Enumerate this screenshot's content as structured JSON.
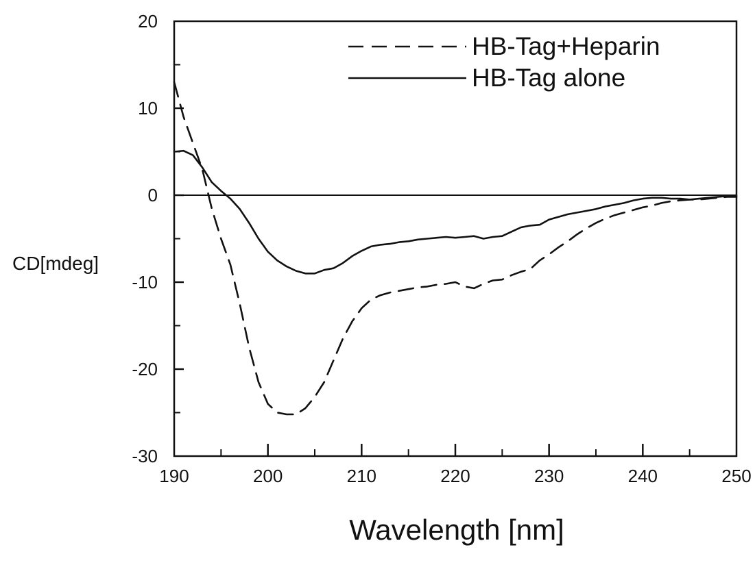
{
  "chart_data": {
    "type": "line",
    "title": "",
    "xlabel": "Wavelength [nm]",
    "ylabel": "CD[mdeg]",
    "xlim": [
      190,
      250
    ],
    "ylim": [
      -30,
      20
    ],
    "xticks": [
      190,
      200,
      210,
      220,
      230,
      240,
      250
    ],
    "yticks": [
      -30,
      -20,
      -10,
      0,
      10,
      20
    ],
    "x_tick_labels": [
      "190",
      "200",
      "210",
      "220",
      "230",
      "240",
      "250"
    ],
    "y_tick_labels": [
      "-30",
      "-20",
      "-10",
      "0",
      "10",
      "20"
    ],
    "legend_position": "top-right",
    "grid": false,
    "zero_line": true,
    "series": [
      {
        "name": "HB-Tag+Heparin",
        "style": "dashed",
        "color": "#111111",
        "points": [
          [
            190,
            13
          ],
          [
            191,
            9
          ],
          [
            192,
            6
          ],
          [
            193,
            3
          ],
          [
            194,
            -1.5
          ],
          [
            195,
            -5
          ],
          [
            196,
            -8
          ],
          [
            197,
            -12.5
          ],
          [
            198,
            -17.5
          ],
          [
            199,
            -21.5
          ],
          [
            200,
            -24
          ],
          [
            201,
            -25
          ],
          [
            202,
            -25.2
          ],
          [
            203,
            -25.2
          ],
          [
            204,
            -24.5
          ],
          [
            205,
            -23.2
          ],
          [
            206,
            -21.5
          ],
          [
            207,
            -19
          ],
          [
            208,
            -16.5
          ],
          [
            209,
            -14.5
          ],
          [
            210,
            -13
          ],
          [
            211,
            -12
          ],
          [
            212,
            -11.5
          ],
          [
            213,
            -11.2
          ],
          [
            214,
            -11
          ],
          [
            215,
            -10.8
          ],
          [
            216,
            -10.6
          ],
          [
            217,
            -10.5
          ],
          [
            218,
            -10.3
          ],
          [
            219,
            -10.2
          ],
          [
            220,
            -10
          ],
          [
            221,
            -10.5
          ],
          [
            222,
            -10.7
          ],
          [
            223,
            -10.2
          ],
          [
            224,
            -9.8
          ],
          [
            225,
            -9.7
          ],
          [
            226,
            -9.2
          ],
          [
            227,
            -8.8
          ],
          [
            228,
            -8.5
          ],
          [
            229,
            -7.5
          ],
          [
            230,
            -6.8
          ],
          [
            231,
            -6
          ],
          [
            232,
            -5.3
          ],
          [
            233,
            -4.5
          ],
          [
            234,
            -3.8
          ],
          [
            235,
            -3.2
          ],
          [
            236,
            -2.7
          ],
          [
            237,
            -2.3
          ],
          [
            238,
            -2
          ],
          [
            239,
            -1.7
          ],
          [
            240,
            -1.4
          ],
          [
            241,
            -1.2
          ],
          [
            242,
            -0.9
          ],
          [
            243,
            -0.7
          ],
          [
            244,
            -0.6
          ],
          [
            245,
            -0.5
          ],
          [
            246,
            -0.5
          ],
          [
            247,
            -0.4
          ],
          [
            248,
            -0.3
          ],
          [
            249,
            -0.2
          ],
          [
            250,
            -0.2
          ]
        ]
      },
      {
        "name": "HB-Tag alone",
        "style": "solid",
        "color": "#111111",
        "points": [
          [
            190,
            5
          ],
          [
            191,
            5.1
          ],
          [
            192,
            4.6
          ],
          [
            193,
            3.2
          ],
          [
            194,
            1.5
          ],
          [
            195,
            0.5
          ],
          [
            196,
            -0.4
          ],
          [
            197,
            -1.6
          ],
          [
            198,
            -3.2
          ],
          [
            199,
            -5
          ],
          [
            200,
            -6.5
          ],
          [
            201,
            -7.5
          ],
          [
            202,
            -8.2
          ],
          [
            203,
            -8.7
          ],
          [
            204,
            -9
          ],
          [
            205,
            -9
          ],
          [
            206,
            -8.6
          ],
          [
            207,
            -8.4
          ],
          [
            208,
            -7.8
          ],
          [
            209,
            -7
          ],
          [
            210,
            -6.4
          ],
          [
            211,
            -5.9
          ],
          [
            212,
            -5.7
          ],
          [
            213,
            -5.6
          ],
          [
            214,
            -5.4
          ],
          [
            215,
            -5.3
          ],
          [
            216,
            -5.1
          ],
          [
            217,
            -5
          ],
          [
            218,
            -4.9
          ],
          [
            219,
            -4.8
          ],
          [
            220,
            -4.9
          ],
          [
            221,
            -4.8
          ],
          [
            222,
            -4.7
          ],
          [
            223,
            -5
          ],
          [
            224,
            -4.8
          ],
          [
            225,
            -4.7
          ],
          [
            226,
            -4.2
          ],
          [
            227,
            -3.7
          ],
          [
            228,
            -3.5
          ],
          [
            229,
            -3.4
          ],
          [
            230,
            -2.8
          ],
          [
            231,
            -2.5
          ],
          [
            232,
            -2.2
          ],
          [
            233,
            -2
          ],
          [
            234,
            -1.8
          ],
          [
            235,
            -1.6
          ],
          [
            236,
            -1.3
          ],
          [
            237,
            -1.1
          ],
          [
            238,
            -0.9
          ],
          [
            239,
            -0.6
          ],
          [
            240,
            -0.4
          ],
          [
            241,
            -0.3
          ],
          [
            242,
            -0.3
          ],
          [
            243,
            -0.4
          ],
          [
            244,
            -0.4
          ],
          [
            245,
            -0.5
          ],
          [
            246,
            -0.4
          ],
          [
            247,
            -0.3
          ],
          [
            248,
            -0.2
          ],
          [
            249,
            -0.1
          ],
          [
            250,
            -0.1
          ]
        ]
      }
    ]
  }
}
